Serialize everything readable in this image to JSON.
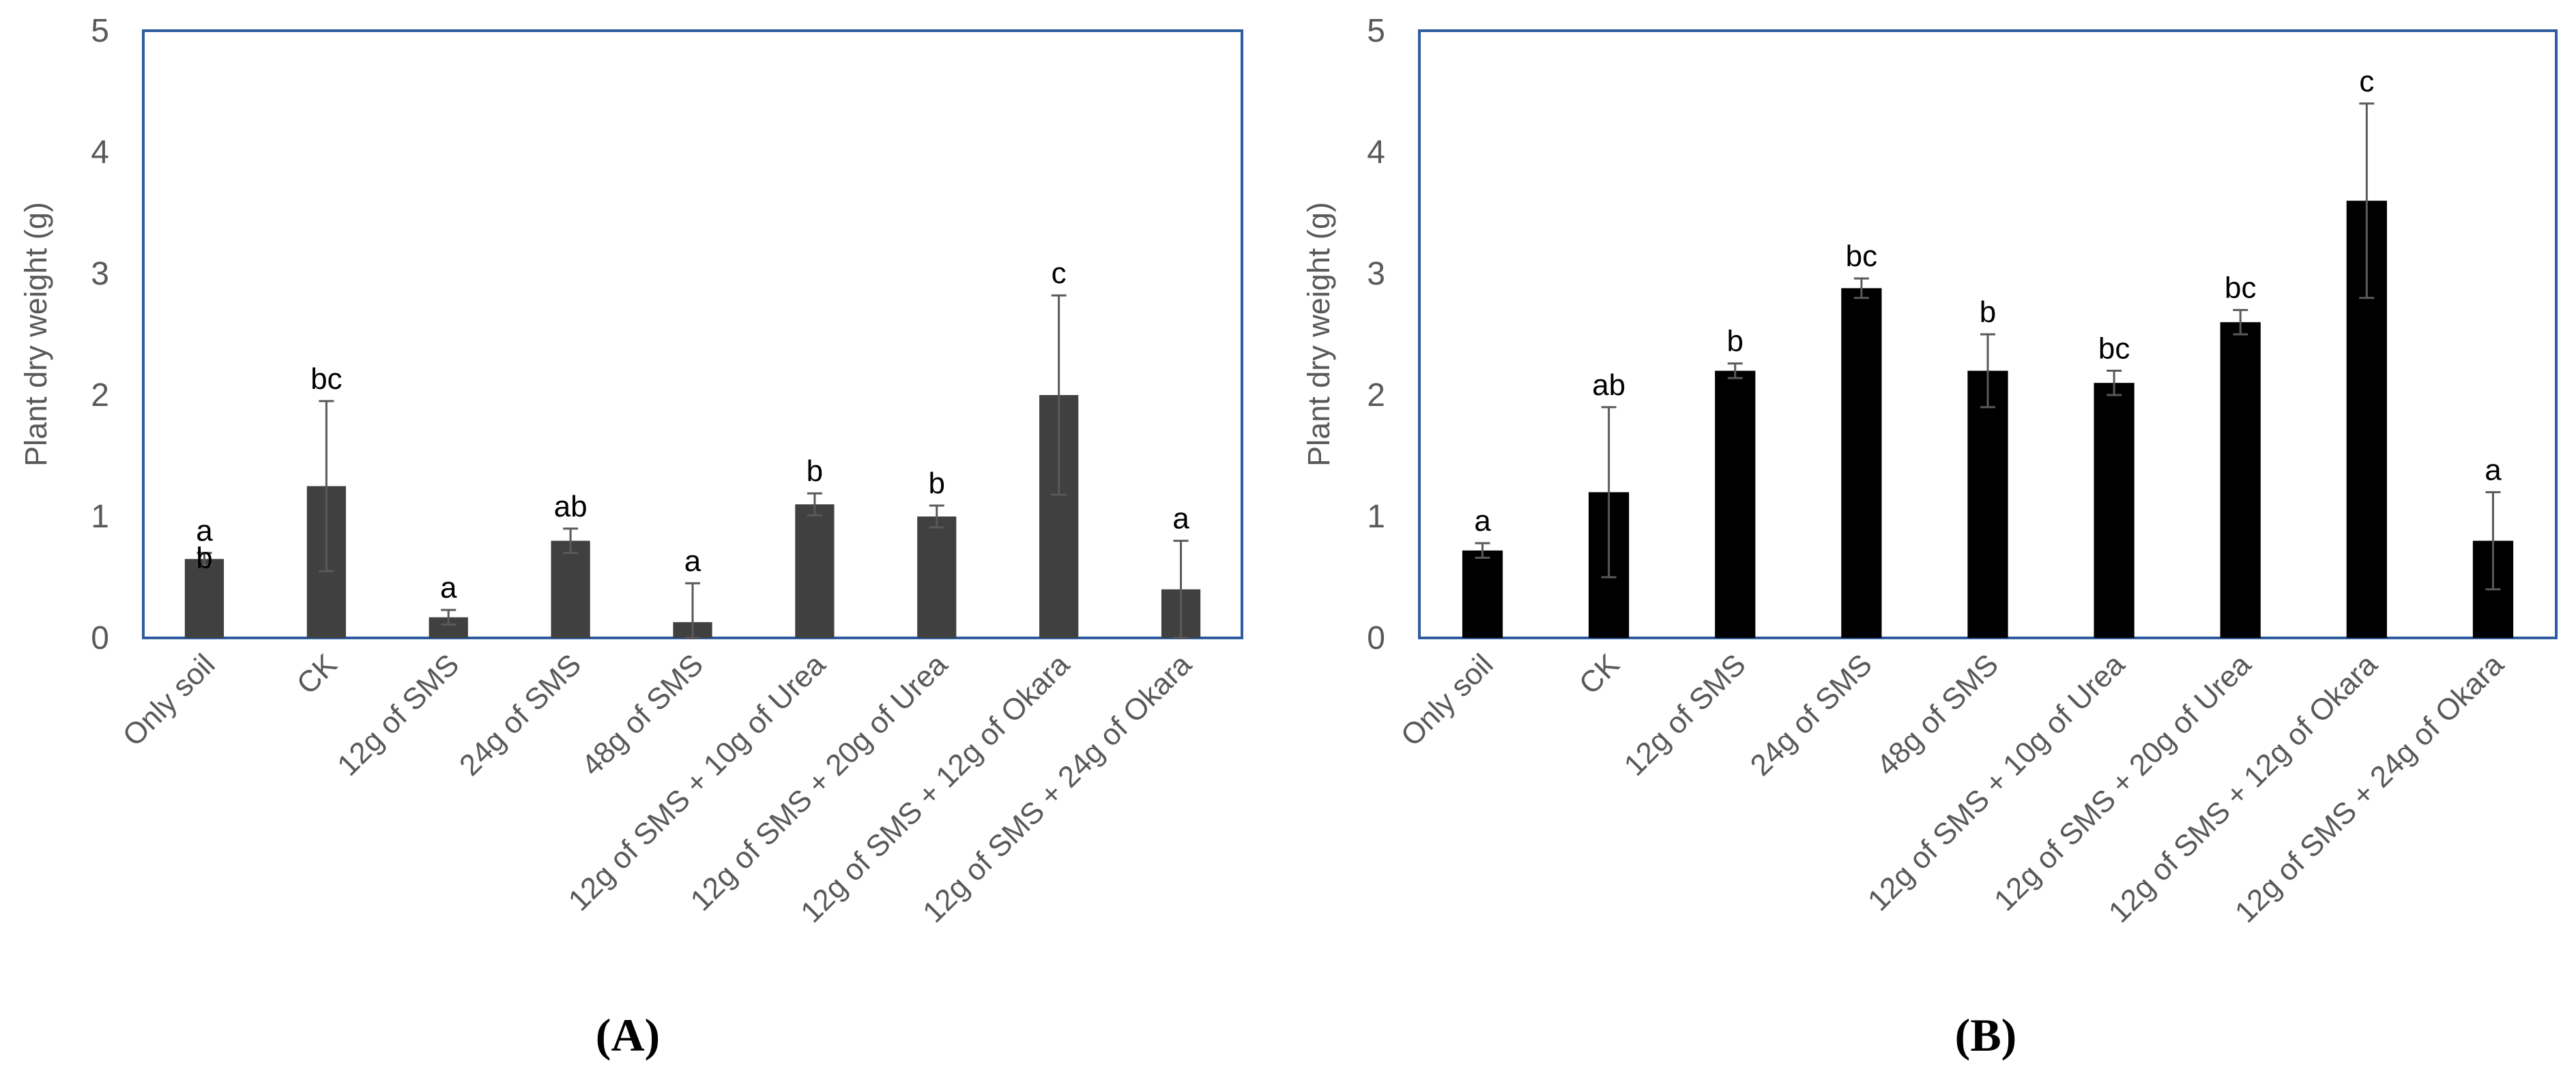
{
  "chart_data": [
    {
      "type": "bar",
      "panel_label": "(A)",
      "ylabel": "Plant dry weight  (g)",
      "ylim": [
        0,
        5
      ],
      "yticks": [
        "0",
        "1",
        "2",
        "3",
        "4",
        "5"
      ],
      "grid": false,
      "bar_color": "#404040",
      "frame_color": "#2E5C9E",
      "categories": [
        "Only soil",
        "CK",
        "12g of SMS",
        "24g of SMS",
        "48g of SMS",
        "12g of SMS + 10g of Urea",
        "12g of SMS + 20g of Urea",
        "12g of SMS + 12g of Okara",
        "12g of SMS + 24g of Okara"
      ],
      "values": [
        0.65,
        1.25,
        0.17,
        0.8,
        0.13,
        1.1,
        1.0,
        2.0,
        0.4
      ],
      "errors": [
        0.05,
        0.7,
        0.06,
        0.1,
        0.32,
        0.09,
        0.09,
        0.82,
        0.4
      ],
      "significance": [
        "a\nb",
        "bc",
        "a",
        "ab",
        "a",
        "b",
        "b",
        "c",
        "a"
      ]
    },
    {
      "type": "bar",
      "panel_label": "(B)",
      "ylabel": "Plant dry weight  (g)",
      "ylim": [
        0,
        5
      ],
      "yticks": [
        "0",
        "1",
        "2",
        "3",
        "4",
        "5"
      ],
      "grid": false,
      "bar_color": "#000000",
      "frame_color": "#2E5C9E",
      "categories": [
        "Only soil",
        "CK",
        "12g of SMS",
        "24g of SMS",
        "48g of SMS",
        "12g of SMS + 10g of Urea",
        "12g of SMS + 20g of Urea",
        "12g of SMS + 12g of Okara",
        "12g of SMS + 24g of Okara"
      ],
      "values": [
        0.72,
        1.2,
        2.2,
        2.88,
        2.2,
        2.1,
        2.6,
        3.6,
        0.8
      ],
      "errors": [
        0.06,
        0.7,
        0.06,
        0.08,
        0.3,
        0.1,
        0.1,
        0.8,
        0.4
      ],
      "significance": [
        "a",
        "ab",
        "b",
        "bc",
        "b",
        "bc",
        "bc",
        "c",
        "a"
      ]
    }
  ]
}
